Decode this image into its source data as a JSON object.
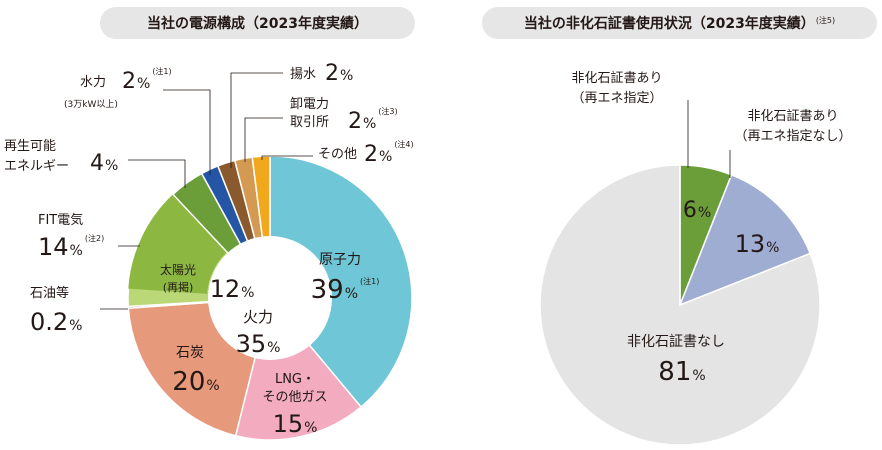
{
  "chart_data": [
    {
      "type": "pie",
      "title": "当社の電源構成（2023年度実績）",
      "unit": "%",
      "slices": [
        {
          "label": "原子力",
          "value": 39,
          "note": "(注1)",
          "color": "#6ec6d6"
        },
        {
          "label_lines": [
            "LNG・",
            "その他ガス"
          ],
          "value": 15,
          "color": "#f2abbf"
        },
        {
          "label": "石炭",
          "value": 20,
          "color": "#e6997b"
        },
        {
          "label": "石油等",
          "value": 0.2,
          "value_text": "0.2",
          "color": "#8b3a8b"
        },
        {
          "label": "FIT電気",
          "value": 14,
          "note": "(注2)",
          "color": "#bbd878",
          "inner": {
            "label_lines": [
              "太陽光",
              "(再掲)"
            ],
            "value": 12,
            "color": "#8cb842"
          }
        },
        {
          "label_lines": [
            "再生可能",
            "エネルギー"
          ],
          "value": 4,
          "color": "#6b9e38"
        },
        {
          "label": "水力",
          "value": 2,
          "sub": "(3万kW以上)",
          "note": "(注1)",
          "color": "#2555a5"
        },
        {
          "label": "揚水",
          "value": 2,
          "color": "#8a5a2e"
        },
        {
          "label_lines": [
            "卸電力",
            "取引所"
          ],
          "value": 2,
          "note": "(注3)",
          "color": "#d49a52"
        },
        {
          "label": "その他",
          "value": 2,
          "note": "(注4)",
          "color": "#f2a81d"
        }
      ],
      "center": {
        "label": "火力",
        "value": 35
      }
    },
    {
      "type": "pie",
      "title": "当社の非化石証書使用状況（2023年度実績）",
      "title_note": "(注5)",
      "unit": "%",
      "slices": [
        {
          "label_lines": [
            "非化石証書あり",
            "（再エネ指定）"
          ],
          "value": 6,
          "color": "#6b9e38"
        },
        {
          "label_lines": [
            "非化石証書あり",
            "（再エネ指定なし）"
          ],
          "value": 13,
          "color": "#9fadd3"
        },
        {
          "label": "非化石証書なし",
          "value": 81,
          "color": "#e4e4e4"
        }
      ]
    }
  ]
}
